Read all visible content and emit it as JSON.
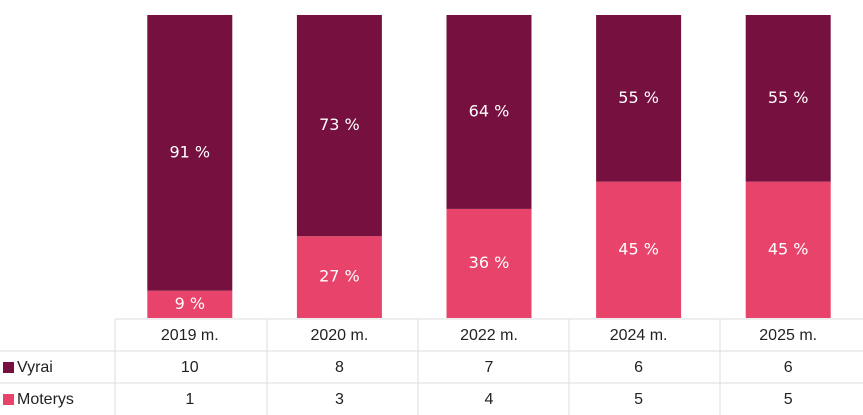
{
  "chart_data": {
    "type": "bar",
    "stacked": true,
    "categories": [
      "2019 m.",
      "2020 m.",
      "2022 m.",
      "2024 m.",
      "2025 m."
    ],
    "series": [
      {
        "name": "Moterys",
        "color": "#e8436a",
        "values": [
          9,
          27,
          36,
          45,
          45
        ],
        "value_labels": [
          "9 %",
          "27 %",
          "36 %",
          "45 %",
          "45 %"
        ]
      },
      {
        "name": "Vyrai",
        "color": "#76113f",
        "values": [
          91,
          73,
          64,
          55,
          55
        ],
        "value_labels": [
          "91 %",
          "73 %",
          "64 %",
          "55 %",
          "55 %"
        ]
      }
    ],
    "ylim": [
      0,
      100
    ]
  },
  "table": {
    "rows": [
      {
        "series": "Vyrai",
        "values": [
          10,
          8,
          7,
          6,
          6
        ]
      },
      {
        "series": "Moterys",
        "values": [
          1,
          3,
          4,
          5,
          5
        ]
      }
    ]
  }
}
